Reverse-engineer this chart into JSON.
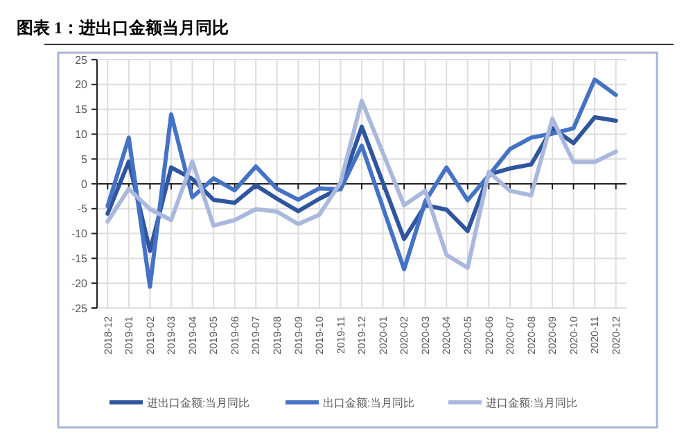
{
  "chart_data": {
    "type": "line",
    "title": "图表 1：进出口金额当月同比",
    "categories": [
      "2018-12",
      "2019-01",
      "2019-02",
      "2019-03",
      "2019-04",
      "2019-05",
      "2019-06",
      "2019-07",
      "2019-08",
      "2019-09",
      "2019-10",
      "2019-11",
      "2019-12",
      "2020-01",
      "2020-02",
      "2020-03",
      "2020-04",
      "2020-05",
      "2020-06",
      "2020-07",
      "2020-08",
      "2020-09",
      "2020-10",
      "2020-11",
      "2020-12"
    ],
    "series": [
      {
        "name": "进出口金额:当月同比",
        "color": "#2e559e",
        "values": [
          -6,
          4.5,
          -13.5,
          3.3,
          1,
          -3.2,
          -3.8,
          -0.3,
          -3,
          -5.5,
          -3,
          -0.8,
          11.5,
          null,
          -11.1,
          -4.3,
          -5.2,
          -9.5,
          1.9,
          3.1,
          3.9,
          11.2,
          8.2,
          13.4,
          12.7
        ]
      },
      {
        "name": "出口金额:当月同比",
        "color": "#4472c4",
        "values": [
          -4.5,
          9.3,
          -20.7,
          14,
          -2.7,
          1.1,
          -1.3,
          3.5,
          -1,
          -3.2,
          -0.9,
          -1.1,
          7.7,
          null,
          -17.2,
          -3.5,
          3.3,
          -3.3,
          1.7,
          7,
          9.3,
          10.1,
          11.2,
          21,
          17.9
        ]
      },
      {
        "name": "进口金额:当月同比",
        "color": "#a9b8dc",
        "values": [
          -7.6,
          -1,
          -5.1,
          -7.3,
          4.5,
          -8.4,
          -7.3,
          -5.1,
          -5.6,
          -8.1,
          -6.2,
          0.3,
          16.7,
          null,
          -4.3,
          -1.4,
          -14.3,
          -16.9,
          2.4,
          -1.4,
          -2.3,
          13.1,
          4.4,
          4.4,
          6.5
        ]
      }
    ],
    "ylim": [
      -25,
      25
    ],
    "yticks": [
      -25,
      -20,
      -15,
      -10,
      -5,
      0,
      5,
      10,
      15,
      20,
      25
    ],
    "grid": true,
    "legend": "bottom"
  }
}
